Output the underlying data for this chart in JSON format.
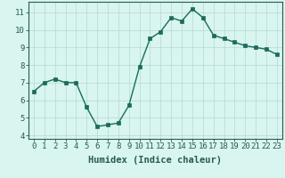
{
  "x": [
    0,
    1,
    2,
    3,
    4,
    5,
    6,
    7,
    8,
    9,
    10,
    11,
    12,
    13,
    14,
    15,
    16,
    17,
    18,
    19,
    20,
    21,
    22,
    23
  ],
  "y": [
    6.5,
    7.0,
    7.2,
    7.0,
    7.0,
    5.6,
    4.5,
    4.6,
    4.7,
    5.7,
    7.9,
    9.5,
    9.9,
    10.7,
    10.5,
    11.2,
    10.7,
    9.7,
    9.5,
    9.3,
    9.1,
    9.0,
    8.9,
    8.6
  ],
  "line_color": "#1a6b5a",
  "marker": "s",
  "marker_size": 2.5,
  "background_color": "#d8f5f0",
  "grid_color": "#b8d8d4",
  "xlabel": "Humidex (Indice chaleur)",
  "ylim": [
    3.8,
    11.6
  ],
  "xlim": [
    -0.5,
    23.5
  ],
  "yticks": [
    4,
    5,
    6,
    7,
    8,
    9,
    10,
    11
  ],
  "xticks": [
    0,
    1,
    2,
    3,
    4,
    5,
    6,
    7,
    8,
    9,
    10,
    11,
    12,
    13,
    14,
    15,
    16,
    17,
    18,
    19,
    20,
    21,
    22,
    23
  ],
  "tick_label_fontsize": 6.5,
  "xlabel_fontsize": 7.5,
  "line_width": 1.0
}
